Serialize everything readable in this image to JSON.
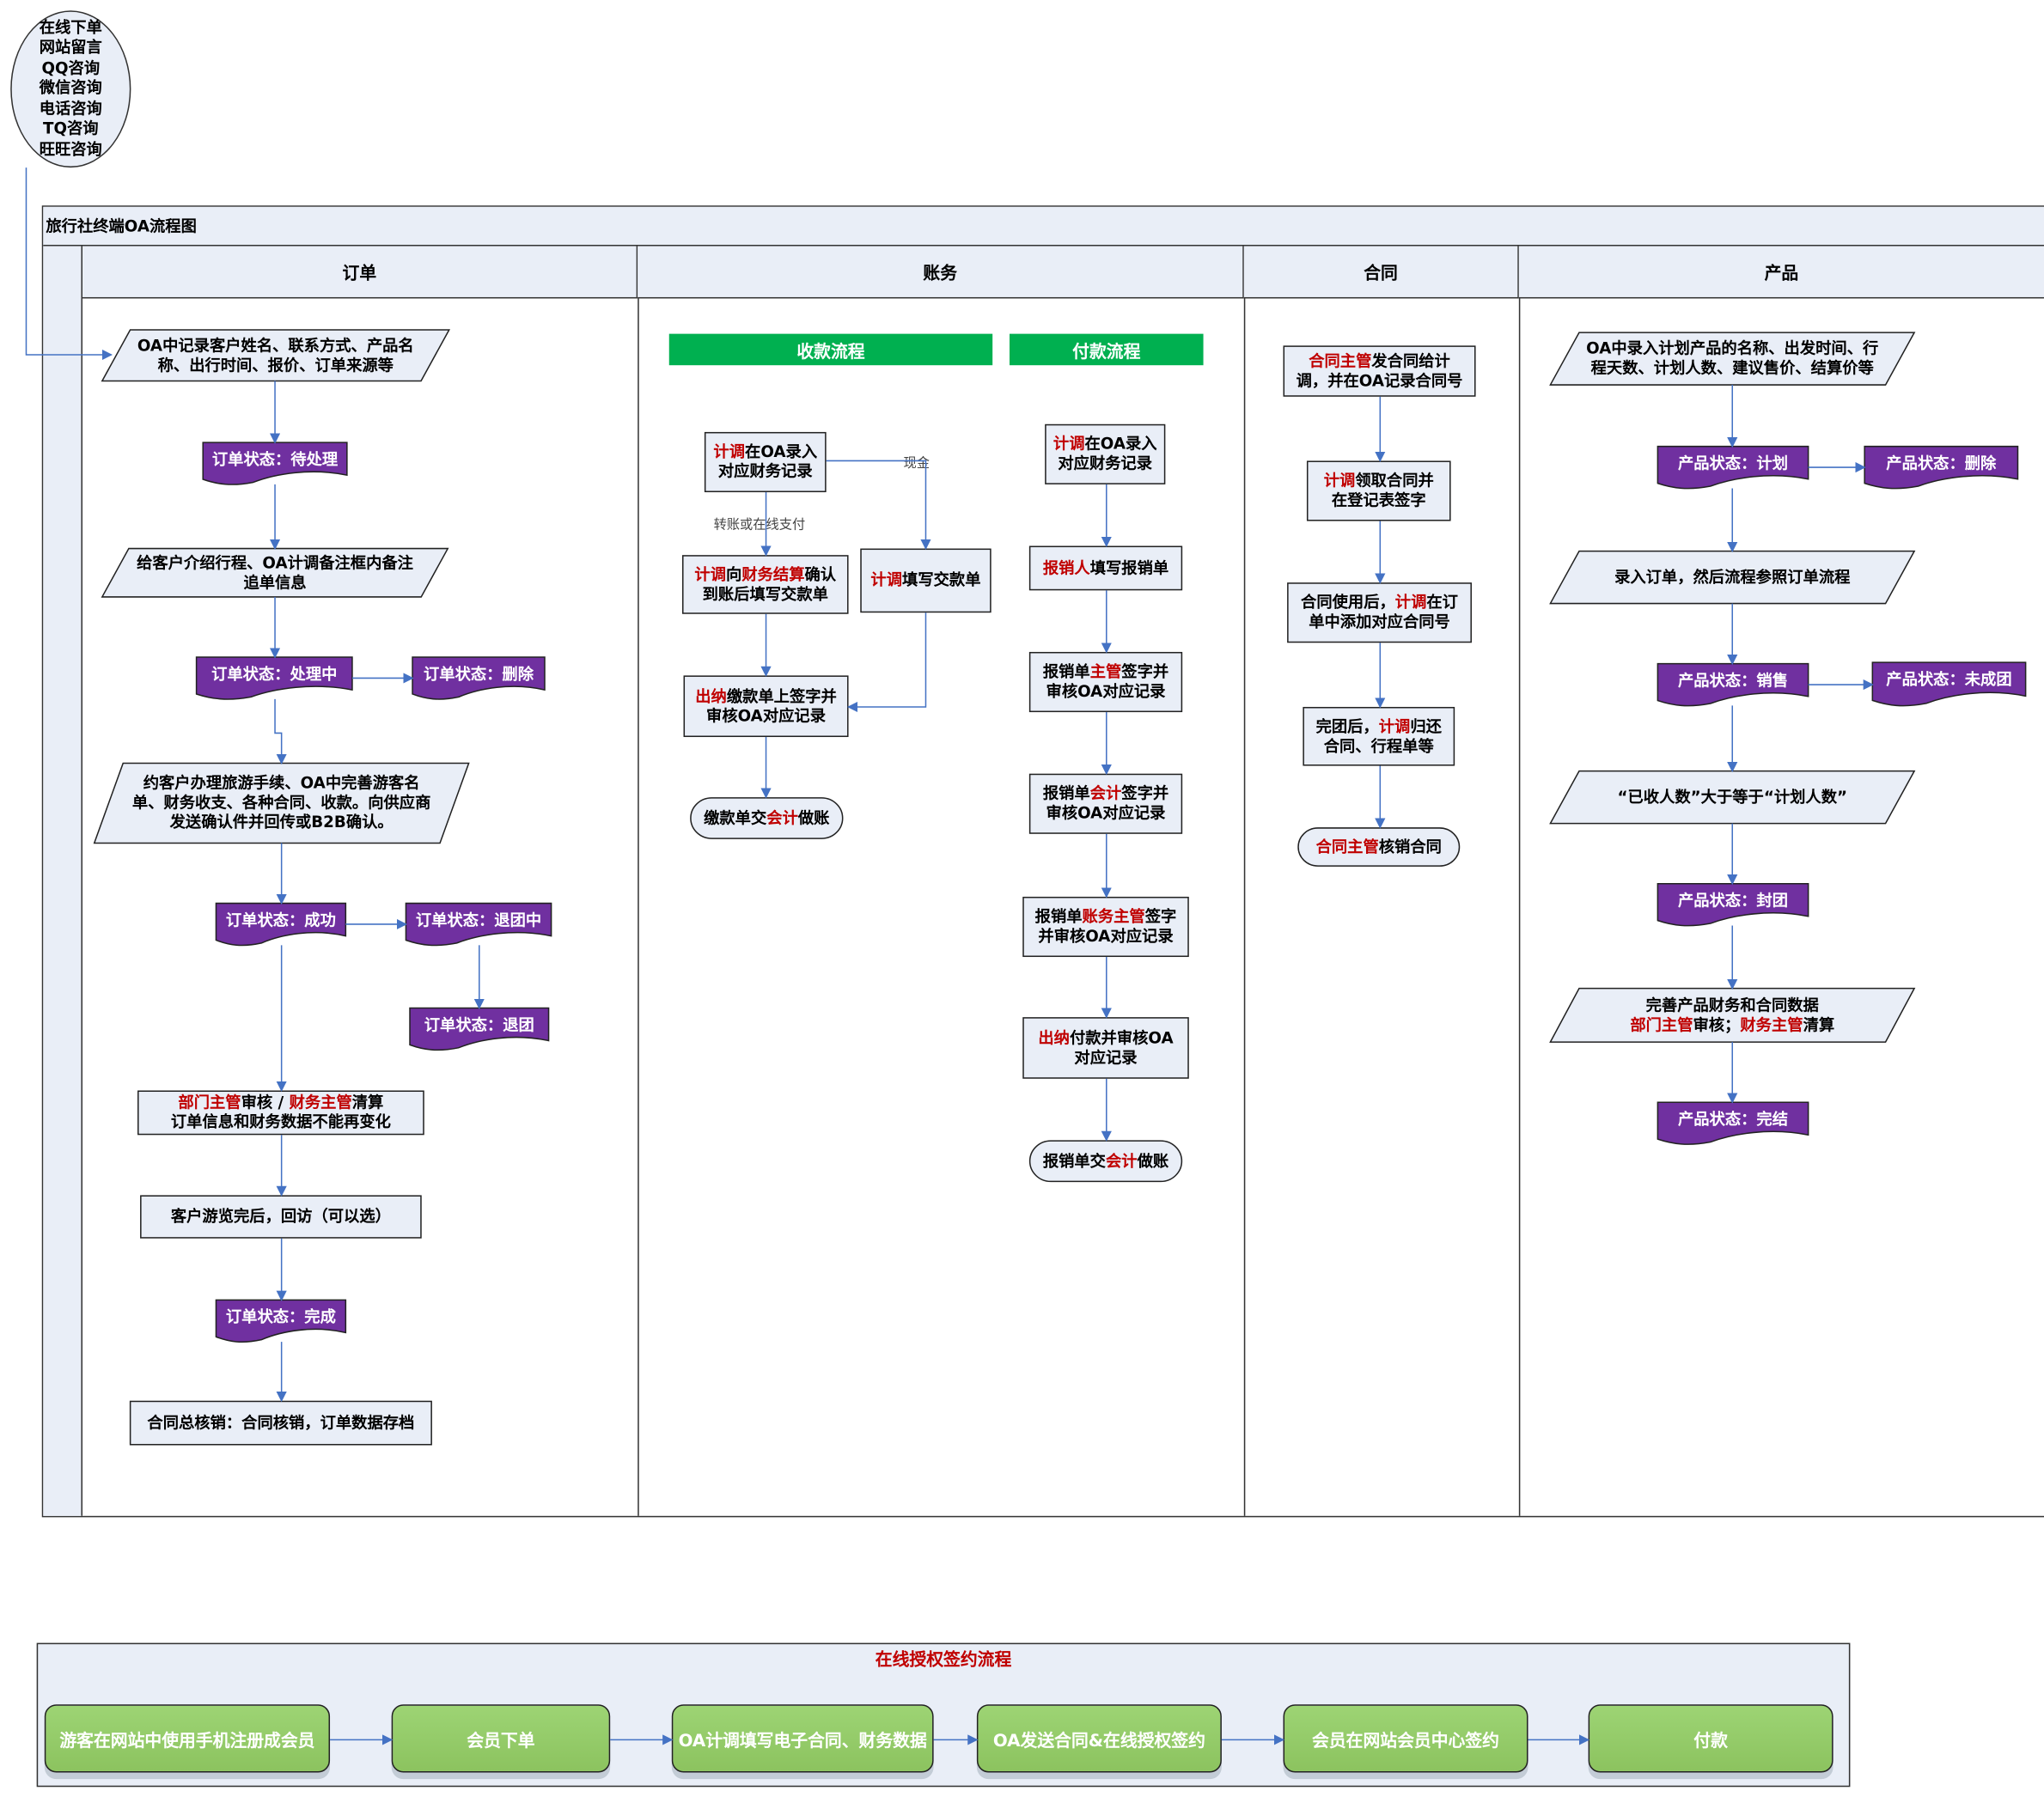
{
  "title": "旅行社终端OA流程图",
  "source": {
    "lines": [
      "在线下单",
      "网站留言",
      "QQ咨询",
      "微信咨询",
      "电话咨询",
      "TQ咨询",
      "旺旺咨询"
    ]
  },
  "lanes": [
    {
      "label": "订单"
    },
    {
      "label": "账务"
    },
    {
      "label": "合同"
    },
    {
      "label": "产品"
    }
  ],
  "finance": {
    "receipt_label": "收款流程",
    "payment_label": "付款流程",
    "edge_labels": {
      "cash": "现金",
      "transfer": "转账或在线支付"
    }
  },
  "colors": {
    "purple": "#7030a0",
    "green": "#00b050",
    "red": "#c00000",
    "box_fill": "#e9eef7",
    "connector": "#4472c4",
    "button_green": "#92cf6a"
  },
  "nodes": [
    {
      "id": "o1",
      "type": "para",
      "lines": [
        [
          [
            "OA中记录客户姓名、联系方式、产品名",
            0
          ]
        ],
        [
          [
            "称、出行时间、报价、订单来源等",
            0
          ]
        ]
      ]
    },
    {
      "id": "o2",
      "type": "status",
      "lines": [
        [
          [
            "订单状态：待处理",
            0
          ]
        ]
      ]
    },
    {
      "id": "o3",
      "type": "para",
      "lines": [
        [
          [
            "给客户介绍行程、OA计调备注框内备注",
            0
          ]
        ],
        [
          [
            "追单信息",
            0
          ]
        ]
      ]
    },
    {
      "id": "o4",
      "type": "status",
      "lines": [
        [
          [
            "订单状态：处理中",
            0
          ]
        ]
      ]
    },
    {
      "id": "o5",
      "type": "status",
      "lines": [
        [
          [
            "订单状态：删除",
            0
          ]
        ]
      ]
    },
    {
      "id": "o6",
      "type": "para",
      "lines": [
        [
          [
            "约客户办理旅游手续、OA中完善游客名",
            0
          ]
        ],
        [
          [
            "单、财务收支、各种合同、收款。向供应商",
            0
          ]
        ],
        [
          [
            "发送确认件并回传或B2B确认。",
            0
          ]
        ]
      ]
    },
    {
      "id": "o7",
      "type": "status",
      "lines": [
        [
          [
            "订单状态：成功",
            0
          ]
        ]
      ]
    },
    {
      "id": "o8",
      "type": "status",
      "lines": [
        [
          [
            "订单状态：退团中",
            0
          ]
        ]
      ]
    },
    {
      "id": "o9",
      "type": "status",
      "lines": [
        [
          [
            "订单状态：退团",
            0
          ]
        ]
      ]
    },
    {
      "id": "o10",
      "type": "rect",
      "lines": [
        [
          [
            "部门主管",
            1
          ],
          [
            "审核 / ",
            0
          ],
          [
            "财务主管",
            1
          ],
          [
            "清算",
            0
          ]
        ],
        [
          [
            "订单信息和财务数据不能再变化",
            0
          ]
        ]
      ]
    },
    {
      "id": "o11",
      "type": "rect",
      "lines": [
        [
          [
            "客户游览完后，回访（可以选）",
            0
          ]
        ]
      ]
    },
    {
      "id": "o12",
      "type": "status",
      "lines": [
        [
          [
            "订单状态：完成",
            0
          ]
        ]
      ]
    },
    {
      "id": "o13",
      "type": "rect",
      "lines": [
        [
          [
            "合同总核销：合同核销，订单数据存档",
            0
          ]
        ]
      ]
    },
    {
      "id": "f1",
      "type": "rect",
      "lines": [
        [
          [
            "计调",
            1
          ],
          [
            "在OA录入",
            0
          ]
        ],
        [
          [
            "对应财务记录",
            0
          ]
        ]
      ]
    },
    {
      "id": "f2",
      "type": "rect",
      "lines": [
        [
          [
            "计调",
            1
          ],
          [
            "向",
            0
          ],
          [
            "财务结算",
            1
          ],
          [
            "确认",
            0
          ]
        ],
        [
          [
            "到账后填写交款单",
            0
          ]
        ]
      ]
    },
    {
      "id": "f3",
      "type": "rect",
      "lines": [
        [
          [
            "计调",
            1
          ],
          [
            "填写交款单",
            0
          ]
        ]
      ]
    },
    {
      "id": "f4",
      "type": "rect",
      "lines": [
        [
          [
            "出纳",
            1
          ],
          [
            "缴款单上签字并",
            0
          ]
        ],
        [
          [
            "审核OA对应记录",
            0
          ]
        ]
      ]
    },
    {
      "id": "f5",
      "type": "term",
      "lines": [
        [
          [
            "缴款单交",
            0
          ],
          [
            "会计",
            1
          ],
          [
            "做账",
            0
          ]
        ]
      ]
    },
    {
      "id": "p1",
      "type": "rect",
      "lines": [
        [
          [
            "计调",
            1
          ],
          [
            "在OA录入",
            0
          ]
        ],
        [
          [
            "对应财务记录",
            0
          ]
        ]
      ]
    },
    {
      "id": "p2",
      "type": "rect",
      "lines": [
        [
          [
            "报销人",
            1
          ],
          [
            "填写报销单",
            0
          ]
        ]
      ]
    },
    {
      "id": "p3",
      "type": "rect",
      "lines": [
        [
          [
            "报销单",
            0
          ],
          [
            "主管",
            1
          ],
          [
            "签字并",
            0
          ]
        ],
        [
          [
            "审核OA对应记录",
            0
          ]
        ]
      ]
    },
    {
      "id": "p4",
      "type": "rect",
      "lines": [
        [
          [
            "报销单",
            0
          ],
          [
            "会计",
            1
          ],
          [
            "签字并",
            0
          ]
        ],
        [
          [
            "审核OA对应记录",
            0
          ]
        ]
      ]
    },
    {
      "id": "p5",
      "type": "rect",
      "lines": [
        [
          [
            "报销单",
            0
          ],
          [
            "账务主管",
            1
          ],
          [
            "签字",
            0
          ]
        ],
        [
          [
            "并审核OA对应记录",
            0
          ]
        ]
      ]
    },
    {
      "id": "p6",
      "type": "rect",
      "lines": [
        [
          [
            "出纳",
            1
          ],
          [
            "付款并审核OA",
            0
          ]
        ],
        [
          [
            "对应记录",
            0
          ]
        ]
      ]
    },
    {
      "id": "p7",
      "type": "term",
      "lines": [
        [
          [
            "报销单交",
            0
          ],
          [
            "会计",
            1
          ],
          [
            "做账",
            0
          ]
        ]
      ]
    },
    {
      "id": "c1",
      "type": "rect",
      "lines": [
        [
          [
            "合同主管",
            1
          ],
          [
            "发合同给计",
            0
          ]
        ],
        [
          [
            "调，并在OA记录合同号",
            0
          ]
        ]
      ]
    },
    {
      "id": "c2",
      "type": "rect",
      "lines": [
        [
          [
            "计调",
            1
          ],
          [
            "领取合同并",
            0
          ]
        ],
        [
          [
            "在登记表签字",
            0
          ]
        ]
      ]
    },
    {
      "id": "c3",
      "type": "rect",
      "lines": [
        [
          [
            "合同使用后，",
            0
          ],
          [
            "计调",
            1
          ],
          [
            "在订",
            0
          ]
        ],
        [
          [
            "单中添加对应合同号",
            0
          ]
        ]
      ]
    },
    {
      "id": "c4",
      "type": "rect",
      "lines": [
        [
          [
            "完团后，",
            0
          ],
          [
            "计调",
            1
          ],
          [
            "归还",
            0
          ]
        ],
        [
          [
            "合同、行程单等",
            0
          ]
        ]
      ]
    },
    {
      "id": "c5",
      "type": "term",
      "lines": [
        [
          [
            "合同主管",
            1
          ],
          [
            "核销合同",
            0
          ]
        ]
      ]
    },
    {
      "id": "r1",
      "type": "para",
      "lines": [
        [
          [
            "OA中录入计划产品的名称、出发时间、行",
            0
          ]
        ],
        [
          [
            "程天数、计划人数、建议售价、结算价等",
            0
          ]
        ]
      ]
    },
    {
      "id": "r2",
      "type": "status",
      "lines": [
        [
          [
            "产品状态：计划",
            0
          ]
        ]
      ]
    },
    {
      "id": "r3",
      "type": "status",
      "lines": [
        [
          [
            "产品状态：删除",
            0
          ]
        ]
      ]
    },
    {
      "id": "r4",
      "type": "para",
      "lines": [
        [
          [
            "录入订单，然后流程参照订单流程",
            0
          ]
        ]
      ]
    },
    {
      "id": "r5",
      "type": "status",
      "lines": [
        [
          [
            "产品状态：销售",
            0
          ]
        ]
      ]
    },
    {
      "id": "r6",
      "type": "status",
      "lines": [
        [
          [
            "产品状态：未成团",
            0
          ]
        ]
      ]
    },
    {
      "id": "r7",
      "type": "para",
      "lines": [
        [
          [
            "“已收人数”大于等于“计划人数”",
            0
          ]
        ]
      ]
    },
    {
      "id": "r8",
      "type": "status",
      "lines": [
        [
          [
            "产品状态：封团",
            0
          ]
        ]
      ]
    },
    {
      "id": "r9",
      "type": "para",
      "lines": [
        [
          [
            "完善产品财务和合同数据",
            0
          ]
        ],
        [
          [
            "部门主管",
            1
          ],
          [
            "审核；",
            0
          ],
          [
            "财务主管",
            1
          ],
          [
            "清算",
            0
          ]
        ]
      ]
    },
    {
      "id": "r10",
      "type": "status",
      "lines": [
        [
          [
            "产品状态：完结",
            0
          ]
        ]
      ]
    }
  ],
  "online_signing": {
    "title": "在线授权签约流程",
    "steps": [
      "游客在网站中使用手机注册成会员",
      "会员下单",
      "OA计调填写电子合同、财务数据",
      "OA发送合同&在线授权签约",
      "会员在网站会员中心签约",
      "付款"
    ]
  }
}
